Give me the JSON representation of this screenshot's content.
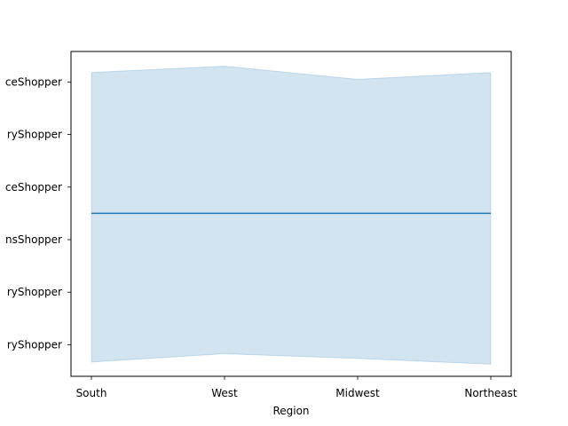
{
  "chart_data": {
    "type": "line",
    "title": "",
    "xlabel": "Region",
    "ylabel": "",
    "categories": [
      "South",
      "West",
      "Midwest",
      "Northeast"
    ],
    "y_tick_labels": [
      "ceShopper",
      "ryShopper",
      "ceShopper",
      "nsShopper",
      "ryShopper",
      "ryShopper"
    ],
    "y_tick_values": [
      5,
      4,
      3,
      2,
      1,
      0
    ],
    "ylim": [
      -0.6,
      5.58
    ],
    "series": [
      {
        "values": [
          2.5,
          2.5,
          2.5,
          2.5
        ],
        "band_upper": [
          5.18,
          5.3,
          5.05,
          5.18
        ],
        "band_lower": [
          -0.33,
          -0.17,
          -0.26,
          -0.37
        ]
      }
    ],
    "grid": false,
    "legend": "none",
    "colors": {
      "line": "#1f77b4",
      "band": "#1f77b4",
      "axes": "#000000"
    }
  }
}
